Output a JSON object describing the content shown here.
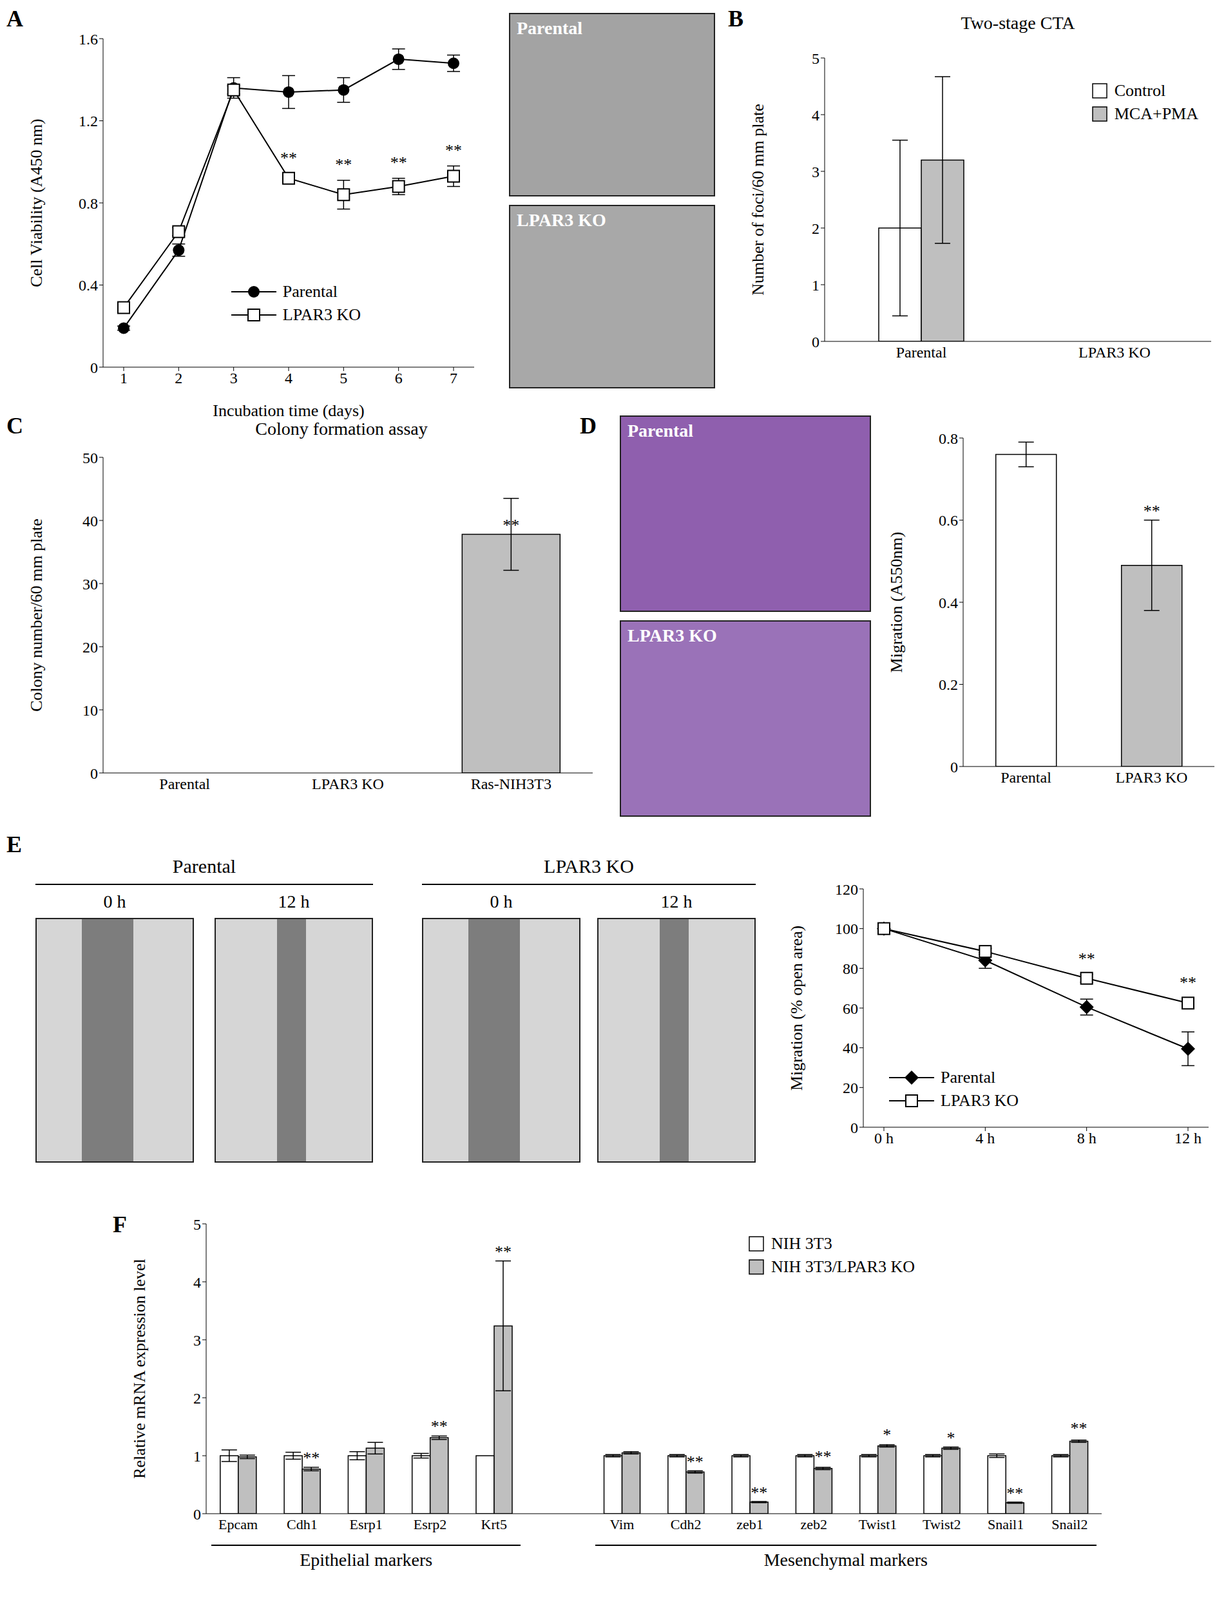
{
  "chart_data": [
    {
      "panel": "A",
      "type": "line",
      "xlabel": "Incubation time (days)",
      "ylabel": "Cell Viability (A450 nm)",
      "categories": [
        "1",
        "2",
        "3",
        "4",
        "5",
        "6",
        "7"
      ],
      "ylim": [
        0,
        1.6
      ],
      "yticks": [
        0,
        0.4,
        0.8,
        1.2,
        1.6
      ],
      "legend": "lower right",
      "series": [
        {
          "name": "Parental",
          "color": "#000000",
          "marker": "circle",
          "values": [
            0.19,
            0.57,
            1.36,
            1.34,
            1.35,
            1.5,
            1.48
          ],
          "errors": [
            0.01,
            0.03,
            0.05,
            0.08,
            0.06,
            0.05,
            0.04
          ]
        },
        {
          "name": "LPAR3 KO",
          "color": "#000000",
          "marker": "square",
          "values": [
            0.29,
            0.66,
            1.35,
            0.92,
            0.84,
            0.88,
            0.93
          ],
          "errors": [
            0.01,
            0.02,
            0.02,
            0.02,
            0.07,
            0.04,
            0.05
          ],
          "significance": [
            null,
            null,
            null,
            "**",
            "**",
            "**",
            "**"
          ]
        }
      ],
      "images": [
        "Parental",
        "LPAR3 KO"
      ]
    },
    {
      "panel": "B",
      "type": "bar",
      "title": "Two-stage CTA",
      "ylabel": "Number of foci/60 mm plate",
      "categories": [
        "Parental",
        "LPAR3 KO"
      ],
      "ylim": [
        0,
        5
      ],
      "yticks": [
        0,
        1,
        2,
        3,
        4,
        5
      ],
      "legend": "upper right",
      "series": [
        {
          "name": "Control",
          "color": "#ffffff",
          "values": [
            2.0,
            0
          ],
          "errors": [
            1.55,
            null
          ]
        },
        {
          "name": "MCA+PMA",
          "color": "#bfbfbf",
          "values": [
            3.2,
            0
          ],
          "errors": [
            1.47,
            null
          ]
        }
      ]
    },
    {
      "panel": "C",
      "type": "bar",
      "title": "Colony formation assay",
      "ylabel": "Colony number/60 mm plate",
      "categories": [
        "Parental",
        "LPAR3 KO",
        "Ras-NIH3T3"
      ],
      "ylim": [
        0,
        50
      ],
      "yticks": [
        0,
        10,
        20,
        30,
        40,
        50
      ],
      "series": [
        {
          "name": "Colony number",
          "color": "#bfbfbf",
          "values": [
            0,
            0,
            37.8
          ],
          "errors": [
            null,
            null,
            5.7
          ],
          "significance": [
            null,
            null,
            "**"
          ]
        }
      ]
    },
    {
      "panel": "D",
      "type": "bar",
      "ylabel": "Migration (A550nm)",
      "categories": [
        "Parental",
        "LPAR3 KO"
      ],
      "ylim": [
        0,
        0.8
      ],
      "yticks": [
        0,
        0.2,
        0.4,
        0.6,
        0.8
      ],
      "series": [
        {
          "name": "Migration",
          "colors": [
            "#ffffff",
            "#bfbfbf"
          ],
          "values": [
            0.76,
            0.49
          ],
          "errors": [
            0.03,
            0.11
          ],
          "significance": [
            null,
            "**"
          ]
        }
      ],
      "images": [
        "Parental",
        "LPAR3 KO"
      ]
    },
    {
      "panel": "E",
      "type": "line",
      "ylabel": "Migration (% open area)",
      "categories": [
        "0 h",
        "4 h",
        "8 h",
        "12 h"
      ],
      "ylim": [
        0,
        120
      ],
      "yticks": [
        0,
        20,
        40,
        60,
        80,
        100,
        120
      ],
      "legend": "lower left",
      "series": [
        {
          "name": "Parental",
          "color": "#000000",
          "marker": "diamond",
          "values": [
            100,
            84,
            60.5,
            39.5
          ],
          "errors": [
            null,
            4,
            4,
            8.5
          ]
        },
        {
          "name": "LPAR3 KO",
          "color": "#000000",
          "marker": "square",
          "values": [
            100,
            88.5,
            75,
            62.5
          ],
          "errors": [
            null,
            1.5,
            2,
            2.5
          ],
          "significance": [
            null,
            null,
            "**",
            "**"
          ]
        }
      ],
      "image_groups": [
        {
          "label": "Parental",
          "images": [
            "0 h",
            "12 h"
          ]
        },
        {
          "label": "LPAR3 KO",
          "images": [
            "0 h",
            "12 h"
          ]
        }
      ]
    },
    {
      "panel": "F",
      "type": "bar",
      "ylabel": "Relative mRNA expression level",
      "categories": [
        "Epcam",
        "Cdh1",
        "Esrp1",
        "Esrp2",
        "Krt5",
        null,
        "Vim",
        "Cdh2",
        "zeb1",
        "zeb2",
        "Twist1",
        "Twist2",
        "Snail1",
        "Snail2"
      ],
      "ylim": [
        0,
        5
      ],
      "yticks": [
        0,
        1,
        2,
        3,
        4,
        5
      ],
      "legend": "upper right",
      "series": [
        {
          "name": "NIH 3T3",
          "color": "#ffffff",
          "values": [
            1,
            1,
            1,
            1,
            1,
            null,
            1,
            1,
            1,
            1,
            1,
            1,
            1,
            1
          ],
          "errors": [
            0.1,
            0.06,
            0.07,
            0.04,
            null,
            null,
            0.02,
            0.02,
            0.02,
            0.02,
            0.02,
            0.02,
            0.03,
            0.02
          ]
        },
        {
          "name": "NIH 3T3/LPAR3 KO",
          "color": "#bfbfbf",
          "values": [
            0.98,
            0.77,
            1.13,
            1.31,
            3.24,
            null,
            1.05,
            0.72,
            0.2,
            0.78,
            1.17,
            1.13,
            0.19,
            1.25
          ],
          "errors": [
            0.03,
            0.03,
            0.1,
            0.03,
            1.12,
            null,
            0.02,
            0.02,
            0.01,
            0.02,
            0.02,
            0.02,
            0.01,
            0.02
          ],
          "significance": [
            null,
            "**",
            null,
            "**",
            "**",
            null,
            null,
            "**",
            "**",
            "**",
            "*",
            "*",
            "**",
            "**"
          ]
        }
      ],
      "groups": [
        {
          "label": "Epithelial markers",
          "categories": [
            "Epcam",
            "Cdh1",
            "Esrp1",
            "Esrp2",
            "Krt5"
          ]
        },
        {
          "label": "Mesenchymal markers",
          "categories": [
            "Vim",
            "Cdh2",
            "zeb1",
            "zeb2",
            "Twist1",
            "Twist2",
            "Snail1",
            "Snail2"
          ]
        }
      ]
    }
  ]
}
